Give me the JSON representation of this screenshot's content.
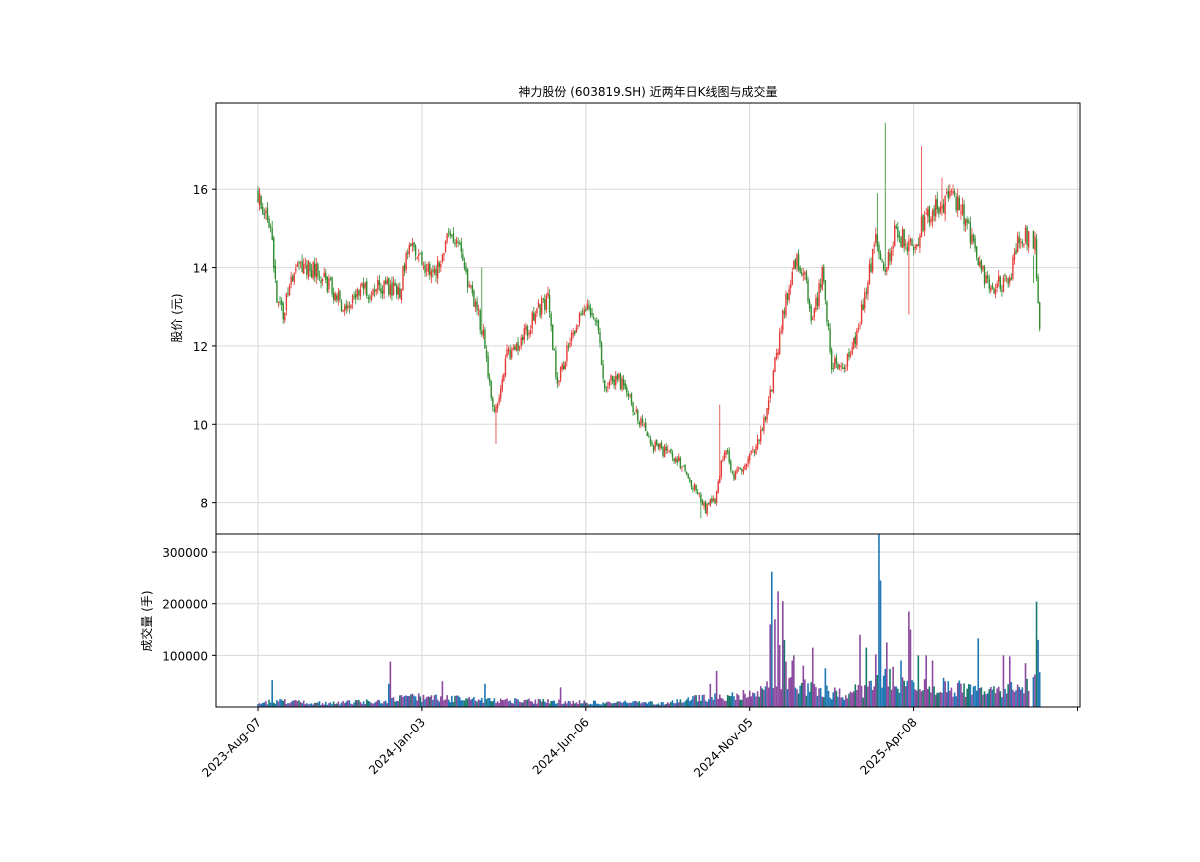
{
  "chart_data": [
    {
      "type": "candlestick",
      "title": "神力股份 (603819.SH) 近两年日K线图与成交量",
      "ylabel": "股价 (元)",
      "ylim": [
        7.2,
        18.2
      ],
      "yticks": [
        8,
        10,
        12,
        14,
        16
      ],
      "xticks": [
        "2023-Aug-07",
        "2024-Jan-03",
        "2024-Jun-06",
        "2024-Nov-05",
        "2025-Apr-08"
      ],
      "grid": true,
      "colors": {
        "up": "#e53935",
        "down": "#2e8b2e"
      },
      "price_anchors": [
        {
          "i": 0,
          "p": 15.9
        },
        {
          "i": 8,
          "p": 15.2
        },
        {
          "i": 12,
          "p": 13.2
        },
        {
          "i": 16,
          "p": 12.8
        },
        {
          "i": 24,
          "p": 14.0
        },
        {
          "i": 36,
          "p": 13.9
        },
        {
          "i": 48,
          "p": 13.4
        },
        {
          "i": 56,
          "p": 12.9
        },
        {
          "i": 66,
          "p": 13.4
        },
        {
          "i": 80,
          "p": 13.5
        },
        {
          "i": 90,
          "p": 13.4
        },
        {
          "i": 96,
          "p": 14.6
        },
        {
          "i": 104,
          "p": 14.1
        },
        {
          "i": 112,
          "p": 13.8
        },
        {
          "i": 120,
          "p": 14.8
        },
        {
          "i": 128,
          "p": 14.4
        },
        {
          "i": 136,
          "p": 13.2
        },
        {
          "i": 142,
          "p": 12.5
        },
        {
          "i": 150,
          "p": 10.2
        },
        {
          "i": 158,
          "p": 11.8
        },
        {
          "i": 166,
          "p": 12.1
        },
        {
          "i": 176,
          "p": 12.8
        },
        {
          "i": 184,
          "p": 13.2
        },
        {
          "i": 190,
          "p": 11.0
        },
        {
          "i": 198,
          "p": 12.2
        },
        {
          "i": 206,
          "p": 12.9
        },
        {
          "i": 214,
          "p": 12.8
        },
        {
          "i": 220,
          "p": 11.0
        },
        {
          "i": 228,
          "p": 11.2
        },
        {
          "i": 236,
          "p": 10.6
        },
        {
          "i": 244,
          "p": 9.9
        },
        {
          "i": 252,
          "p": 9.4
        },
        {
          "i": 262,
          "p": 9.3
        },
        {
          "i": 270,
          "p": 8.9
        },
        {
          "i": 278,
          "p": 8.3
        },
        {
          "i": 284,
          "p": 7.8
        },
        {
          "i": 290,
          "p": 8.1
        },
        {
          "i": 296,
          "p": 9.4
        },
        {
          "i": 302,
          "p": 8.7
        },
        {
          "i": 310,
          "p": 9.0
        },
        {
          "i": 318,
          "p": 9.6
        },
        {
          "i": 326,
          "p": 11.0
        },
        {
          "i": 334,
          "p": 13.0
        },
        {
          "i": 340,
          "p": 14.2
        },
        {
          "i": 346,
          "p": 14.0
        },
        {
          "i": 352,
          "p": 12.6
        },
        {
          "i": 358,
          "p": 13.8
        },
        {
          "i": 364,
          "p": 11.6
        },
        {
          "i": 372,
          "p": 11.5
        },
        {
          "i": 380,
          "p": 12.3
        },
        {
          "i": 386,
          "p": 13.4
        },
        {
          "i": 392,
          "p": 14.8
        },
        {
          "i": 398,
          "p": 13.8
        },
        {
          "i": 404,
          "p": 14.9
        },
        {
          "i": 410,
          "p": 14.7
        },
        {
          "i": 416,
          "p": 14.4
        },
        {
          "i": 422,
          "p": 15.2
        },
        {
          "i": 428,
          "p": 15.5
        },
        {
          "i": 434,
          "p": 15.6
        },
        {
          "i": 440,
          "p": 15.9
        },
        {
          "i": 446,
          "p": 15.5
        },
        {
          "i": 452,
          "p": 14.8
        },
        {
          "i": 458,
          "p": 14.2
        },
        {
          "i": 464,
          "p": 13.4
        },
        {
          "i": 470,
          "p": 13.6
        },
        {
          "i": 476,
          "p": 13.6
        },
        {
          "i": 482,
          "p": 14.6
        },
        {
          "i": 488,
          "p": 14.8
        },
        {
          "i": 493,
          "p": 14.7
        },
        {
          "i": 496,
          "p": 12.3
        }
      ],
      "price_spikes": [
        {
          "i": 142,
          "high": 14.0
        },
        {
          "i": 151,
          "low": 9.5
        },
        {
          "i": 281,
          "low": 7.6
        },
        {
          "i": 293,
          "high": 10.5
        },
        {
          "i": 393,
          "high": 15.9
        },
        {
          "i": 398,
          "high": 17.7
        },
        {
          "i": 413,
          "low": 12.8
        },
        {
          "i": 421,
          "high": 17.1
        },
        {
          "i": 434,
          "high": 16.3
        },
        {
          "i": 492,
          "high": 13.6
        }
      ]
    },
    {
      "type": "bar",
      "ylabel": "成交量 (手)",
      "ylim": [
        0,
        335000
      ],
      "yticks": [
        100000,
        200000,
        300000
      ],
      "ytick_labels": [
        "100000",
        "200000",
        "300000"
      ],
      "colors": {
        "up": "#8b4aa0",
        "down": "#1f77b4",
        "overlap": "#1a7a6a"
      },
      "volume_anchors": [
        {
          "i": 0,
          "v": 6000
        },
        {
          "i": 10,
          "v": 12000
        },
        {
          "i": 40,
          "v": 8000
        },
        {
          "i": 80,
          "v": 12000
        },
        {
          "i": 96,
          "v": 20000
        },
        {
          "i": 140,
          "v": 15000
        },
        {
          "i": 200,
          "v": 10000
        },
        {
          "i": 260,
          "v": 8000
        },
        {
          "i": 280,
          "v": 18000
        },
        {
          "i": 300,
          "v": 20000
        },
        {
          "i": 320,
          "v": 30000
        },
        {
          "i": 330,
          "v": 55000
        },
        {
          "i": 350,
          "v": 40000
        },
        {
          "i": 370,
          "v": 25000
        },
        {
          "i": 390,
          "v": 40000
        },
        {
          "i": 400,
          "v": 60000
        },
        {
          "i": 420,
          "v": 45000
        },
        {
          "i": 440,
          "v": 40000
        },
        {
          "i": 460,
          "v": 30000
        },
        {
          "i": 480,
          "v": 35000
        },
        {
          "i": 490,
          "v": 55000
        },
        {
          "i": 496,
          "v": 60000
        }
      ],
      "volume_spikes": [
        {
          "i": 9,
          "v": 52000
        },
        {
          "i": 83,
          "v": 45000
        },
        {
          "i": 84,
          "v": 88000
        },
        {
          "i": 117,
          "v": 50000
        },
        {
          "i": 144,
          "v": 45000
        },
        {
          "i": 192,
          "v": 38000
        },
        {
          "i": 287,
          "v": 45000
        },
        {
          "i": 291,
          "v": 70000
        },
        {
          "i": 322,
          "v": 40000
        },
        {
          "i": 325,
          "v": 160000
        },
        {
          "i": 326,
          "v": 262000
        },
        {
          "i": 328,
          "v": 170000
        },
        {
          "i": 330,
          "v": 224000
        },
        {
          "i": 331,
          "v": 120000
        },
        {
          "i": 333,
          "v": 205000
        },
        {
          "i": 334,
          "v": 130000
        },
        {
          "i": 335,
          "v": 88000
        },
        {
          "i": 339,
          "v": 90000
        },
        {
          "i": 340,
          "v": 100000
        },
        {
          "i": 346,
          "v": 80000
        },
        {
          "i": 352,
          "v": 115000
        },
        {
          "i": 360,
          "v": 75000
        },
        {
          "i": 382,
          "v": 140000
        },
        {
          "i": 386,
          "v": 115000
        },
        {
          "i": 392,
          "v": 102000
        },
        {
          "i": 394,
          "v": 335000
        },
        {
          "i": 395,
          "v": 245000
        },
        {
          "i": 399,
          "v": 125000
        },
        {
          "i": 403,
          "v": 78000
        },
        {
          "i": 408,
          "v": 90000
        },
        {
          "i": 413,
          "v": 185000
        },
        {
          "i": 414,
          "v": 150000
        },
        {
          "i": 419,
          "v": 100000
        },
        {
          "i": 424,
          "v": 100000
        },
        {
          "i": 428,
          "v": 90000
        },
        {
          "i": 457,
          "v": 133000
        },
        {
          "i": 473,
          "v": 100000
        },
        {
          "i": 477,
          "v": 98000
        },
        {
          "i": 487,
          "v": 85000
        },
        {
          "i": 494,
          "v": 204000
        },
        {
          "i": 495,
          "v": 130000
        }
      ]
    }
  ]
}
